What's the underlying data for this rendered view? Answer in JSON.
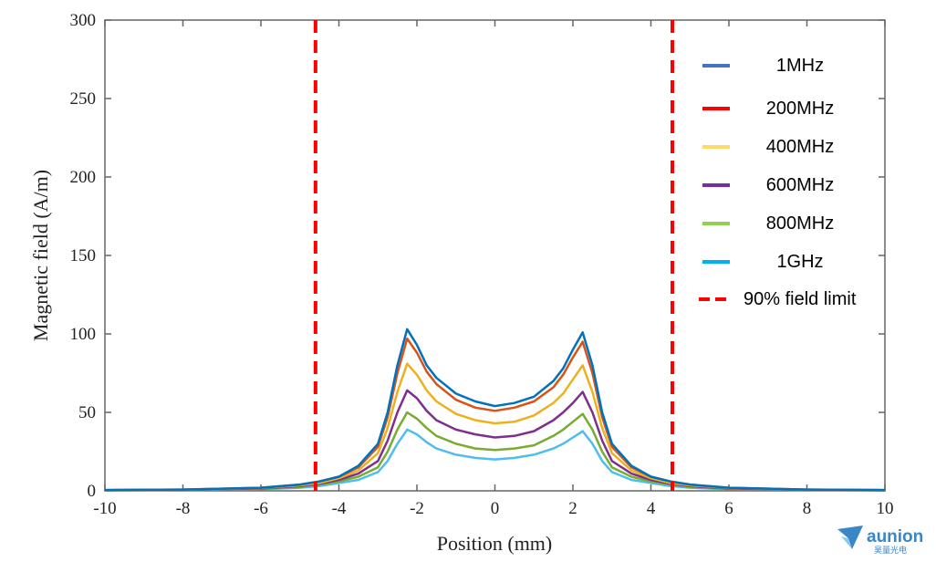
{
  "chart_data": {
    "type": "line",
    "title": "",
    "xlabel": "Position (mm)",
    "ylabel": "Magnetic field (A/m)",
    "xlim": [
      -10,
      10
    ],
    "ylim": [
      0,
      300
    ],
    "xticks": [
      "-10",
      "-8",
      "-6",
      "-4",
      "-2",
      "0",
      "2",
      "4",
      "6",
      "8",
      "10"
    ],
    "yticks": [
      "0",
      "50",
      "100",
      "150",
      "200",
      "250",
      "300"
    ],
    "grid": false,
    "legend_position": "top-right",
    "x": [
      -10,
      -8,
      -6,
      -5,
      -4.5,
      -4,
      -3.5,
      -3,
      -2.75,
      -2.5,
      -2.25,
      -2,
      -1.75,
      -1.5,
      -1,
      -0.5,
      0,
      0.5,
      1,
      1.5,
      1.75,
      2,
      2.25,
      2.5,
      2.75,
      3,
      3.5,
      4,
      4.5,
      5,
      6,
      8,
      10
    ],
    "series": [
      {
        "name": "1MHz",
        "color": "#0072BD",
        "legend_color": "#4472C4",
        "values": [
          0.5,
          0.8,
          2,
          4,
          6,
          9,
          16,
          30,
          50,
          80,
          103,
          93,
          80,
          72,
          62,
          57,
          54,
          56,
          60,
          70,
          78,
          90,
          101,
          80,
          50,
          30,
          16,
          9,
          6,
          4,
          2,
          0.8,
          0.5
        ]
      },
      {
        "name": "200MHz",
        "color": "#D95319",
        "legend_color": "#FF0000",
        "values": [
          0.5,
          0.8,
          2,
          4,
          6,
          9,
          15,
          28,
          47,
          75,
          97,
          88,
          76,
          68,
          58,
          53,
          51,
          53,
          57,
          66,
          74,
          85,
          95,
          75,
          47,
          28,
          15,
          9,
          6,
          4,
          2,
          0.8,
          0.5
        ]
      },
      {
        "name": "400MHz",
        "color": "#EDB120",
        "legend_color": "#FFD966",
        "values": [
          0.4,
          0.7,
          1.8,
          3.5,
          5,
          8,
          13,
          24,
          40,
          63,
          81,
          74,
          64,
          57,
          49,
          45,
          43,
          44,
          48,
          56,
          62,
          71,
          80,
          63,
          40,
          24,
          13,
          8,
          5,
          3.5,
          1.8,
          0.7,
          0.4
        ]
      },
      {
        "name": "600MHz",
        "color": "#7E2F8E",
        "legend_color": "#7030A0",
        "values": [
          0.4,
          0.6,
          1.5,
          3,
          4.5,
          7,
          11,
          19,
          32,
          50,
          64,
          59,
          51,
          45,
          39,
          36,
          34,
          35,
          38,
          45,
          50,
          56,
          63,
          50,
          32,
          19,
          11,
          7,
          4.5,
          3,
          1.5,
          0.6,
          0.4
        ]
      },
      {
        "name": "800MHz",
        "color": "#77AC30",
        "legend_color": "#92D050",
        "values": [
          0.3,
          0.5,
          1.2,
          2.5,
          4,
          6,
          9,
          15,
          25,
          39,
          50,
          46,
          40,
          35,
          30,
          27,
          26,
          27,
          29,
          35,
          39,
          44,
          49,
          39,
          25,
          15,
          9,
          6,
          4,
          2.5,
          1.2,
          0.5,
          0.3
        ]
      },
      {
        "name": "1GHz",
        "color": "#4DBEEE",
        "legend_color": "#00B0F0",
        "values": [
          0.3,
          0.5,
          1,
          2,
          3,
          5,
          7,
          12,
          19,
          30,
          39,
          36,
          31,
          27,
          23,
          21,
          20,
          21,
          23,
          27,
          30,
          34,
          38,
          30,
          19,
          12,
          7,
          5,
          3,
          2,
          1,
          0.5,
          0.3
        ]
      }
    ],
    "limit_lines": {
      "name": "90% field limit",
      "color": "#FF0000",
      "x": [
        -4.6,
        4.55
      ]
    }
  },
  "logo": {
    "name": "aunion",
    "subtitle": "昊量光电"
  }
}
